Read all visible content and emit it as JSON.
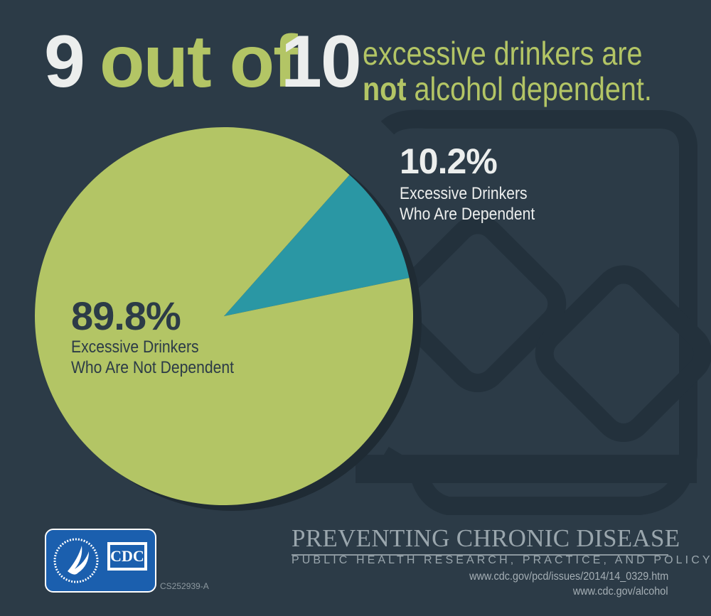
{
  "headline": {
    "num1": "9",
    "mid": "out of",
    "num2": "10",
    "line1": "excessive drinkers are",
    "line2_bold": "not",
    "line2_rest": "alcohol dependent."
  },
  "chart_data": {
    "type": "pie",
    "slices": [
      {
        "label": "Excessive Drinkers Who Are Dependent",
        "value": 10.2,
        "display": "10.2%",
        "label_lines": [
          "Excessive Drinkers",
          "Who Are Dependent"
        ],
        "color": "#2a97a4"
      },
      {
        "label": "Excessive Drinkers Who Are Not Dependent",
        "value": 89.8,
        "display": "89.8%",
        "label_lines": [
          "Excessive Drinkers",
          "Who Are Not Dependent"
        ],
        "color": "#b3c565"
      }
    ]
  },
  "footer": {
    "title": "PREVENTING CHRONIC DISEASE",
    "subtitle": "PUBLIC HEALTH RESEARCH, PRACTICE, AND POLICY",
    "url1": "www.cdc.gov/pcd/issues/2014/14_0329.htm",
    "url2": "www.cdc.gov/alcohol",
    "code": "CS252939-A",
    "logo_text": "CDC"
  },
  "colors": {
    "background": "#2c3b47",
    "accent_green": "#b3c565",
    "accent_teal": "#2a97a4",
    "glass": "#23313c"
  }
}
